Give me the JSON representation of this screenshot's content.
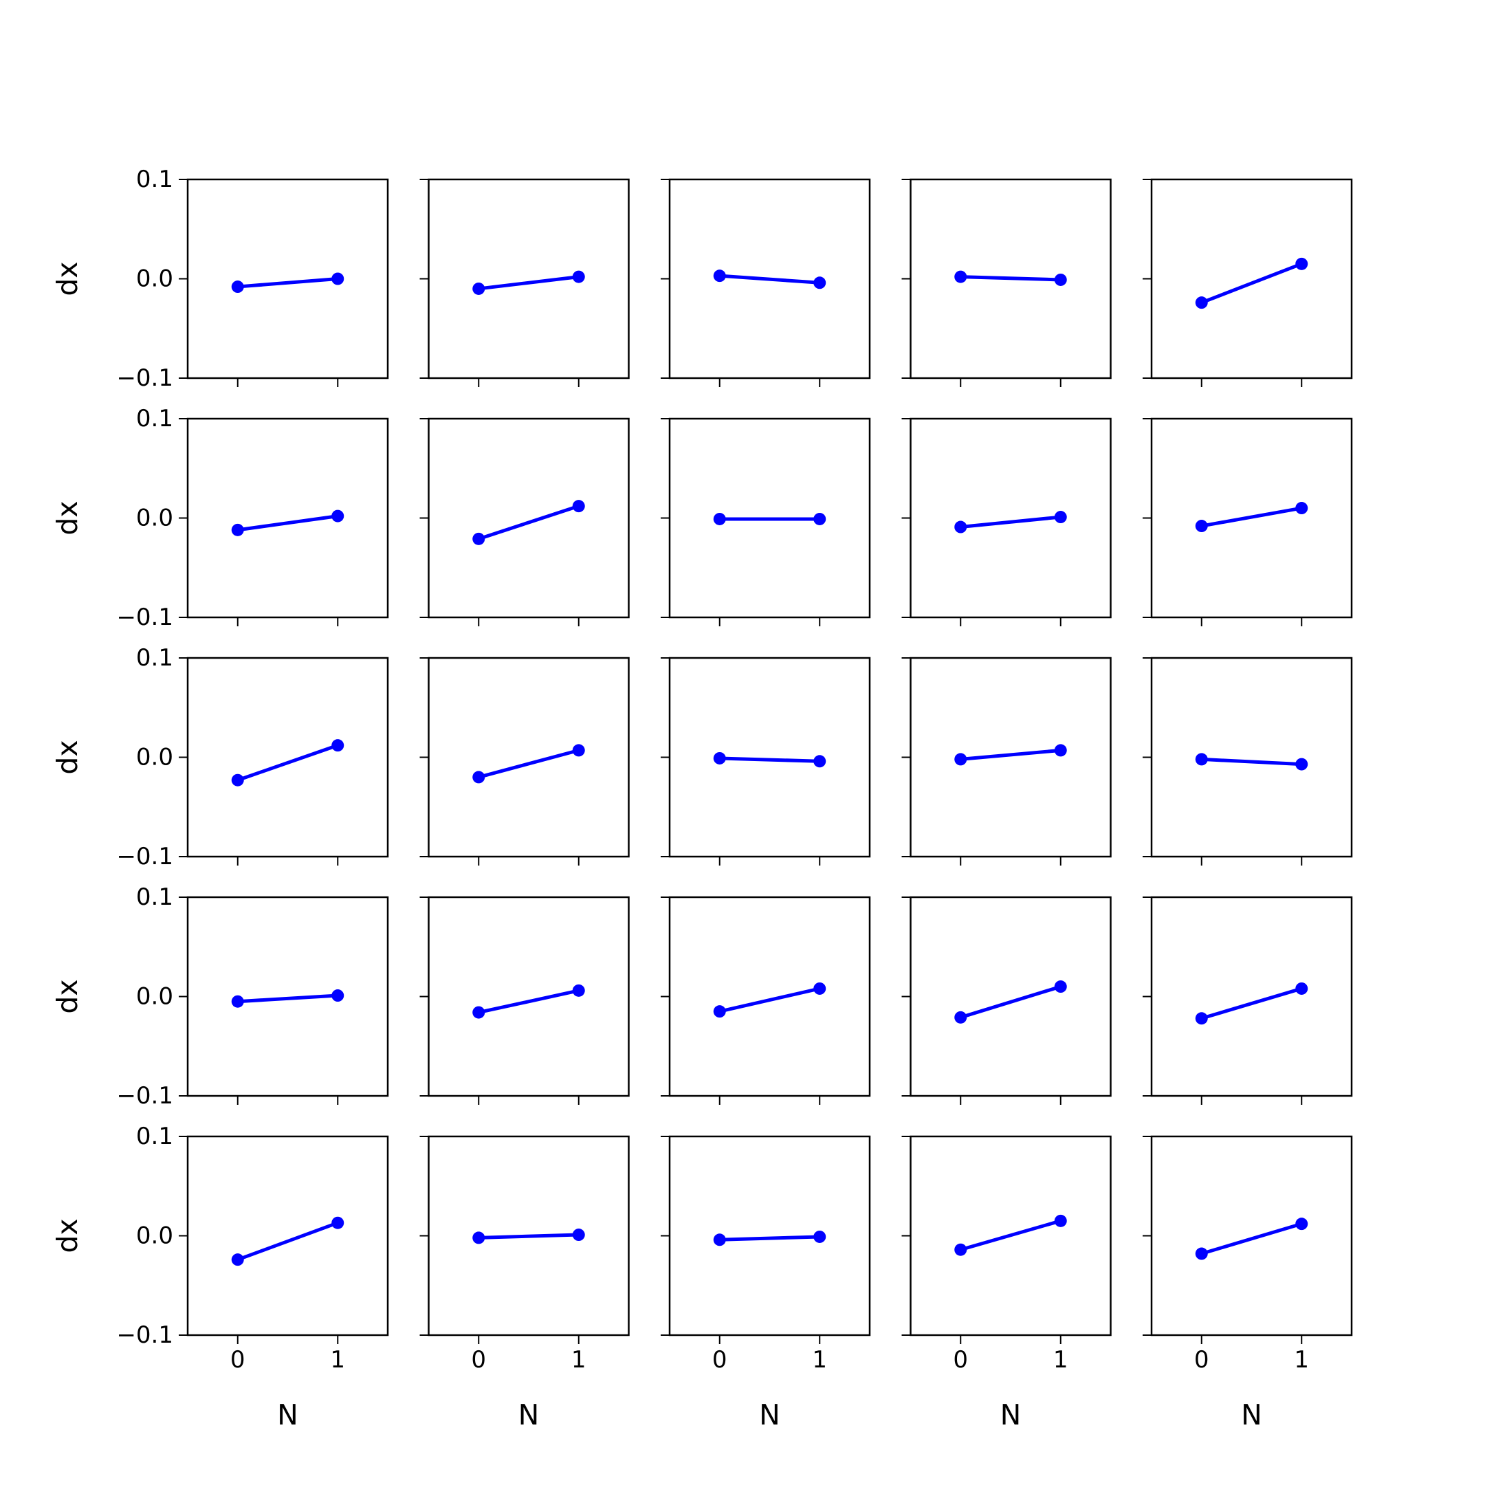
{
  "figure": {
    "rows": 5,
    "cols": 5,
    "sharex": true,
    "sharey": true
  },
  "axes_common": {
    "ylabel": "dx",
    "xlabel": "N",
    "ylim": [
      -0.1,
      0.1
    ],
    "xlim": [
      -0.5,
      1.5
    ],
    "yticks": [
      -0.1,
      0.0,
      0.1
    ],
    "ytick_labels": [
      "−0.1",
      "0.0",
      "0.1"
    ],
    "xticks": [
      0,
      1
    ],
    "xtick_labels": [
      "0",
      "1"
    ],
    "grid": false
  },
  "colors": {
    "series": "#0000ff",
    "axes": "#000000",
    "background": "#ffffff"
  },
  "chart_data": {
    "type": "line",
    "marker": "circle",
    "x": [
      0,
      1
    ],
    "panels": [
      {
        "row": 0,
        "col": 0,
        "y": [
          -0.008,
          0.0
        ]
      },
      {
        "row": 0,
        "col": 1,
        "y": [
          -0.01,
          0.002
        ]
      },
      {
        "row": 0,
        "col": 2,
        "y": [
          0.003,
          -0.004
        ]
      },
      {
        "row": 0,
        "col": 3,
        "y": [
          0.002,
          -0.001
        ]
      },
      {
        "row": 0,
        "col": 4,
        "y": [
          -0.024,
          0.015
        ]
      },
      {
        "row": 1,
        "col": 0,
        "y": [
          -0.012,
          0.002
        ]
      },
      {
        "row": 1,
        "col": 1,
        "y": [
          -0.021,
          0.012
        ]
      },
      {
        "row": 1,
        "col": 2,
        "y": [
          -0.001,
          -0.001
        ]
      },
      {
        "row": 1,
        "col": 3,
        "y": [
          -0.009,
          0.001
        ]
      },
      {
        "row": 1,
        "col": 4,
        "y": [
          -0.008,
          0.01
        ]
      },
      {
        "row": 2,
        "col": 0,
        "y": [
          -0.023,
          0.012
        ]
      },
      {
        "row": 2,
        "col": 1,
        "y": [
          -0.02,
          0.007
        ]
      },
      {
        "row": 2,
        "col": 2,
        "y": [
          -0.001,
          -0.004
        ]
      },
      {
        "row": 2,
        "col": 3,
        "y": [
          -0.002,
          0.007
        ]
      },
      {
        "row": 2,
        "col": 4,
        "y": [
          -0.002,
          -0.007
        ]
      },
      {
        "row": 3,
        "col": 0,
        "y": [
          -0.005,
          0.001
        ]
      },
      {
        "row": 3,
        "col": 1,
        "y": [
          -0.016,
          0.006
        ]
      },
      {
        "row": 3,
        "col": 2,
        "y": [
          -0.015,
          0.008
        ]
      },
      {
        "row": 3,
        "col": 3,
        "y": [
          -0.021,
          0.01
        ]
      },
      {
        "row": 3,
        "col": 4,
        "y": [
          -0.022,
          0.008
        ]
      },
      {
        "row": 4,
        "col": 0,
        "y": [
          -0.024,
          0.013
        ]
      },
      {
        "row": 4,
        "col": 1,
        "y": [
          -0.002,
          0.001
        ]
      },
      {
        "row": 4,
        "col": 2,
        "y": [
          -0.004,
          -0.001
        ]
      },
      {
        "row": 4,
        "col": 3,
        "y": [
          -0.014,
          0.015
        ]
      },
      {
        "row": 4,
        "col": 4,
        "y": [
          -0.018,
          0.012
        ]
      }
    ]
  }
}
